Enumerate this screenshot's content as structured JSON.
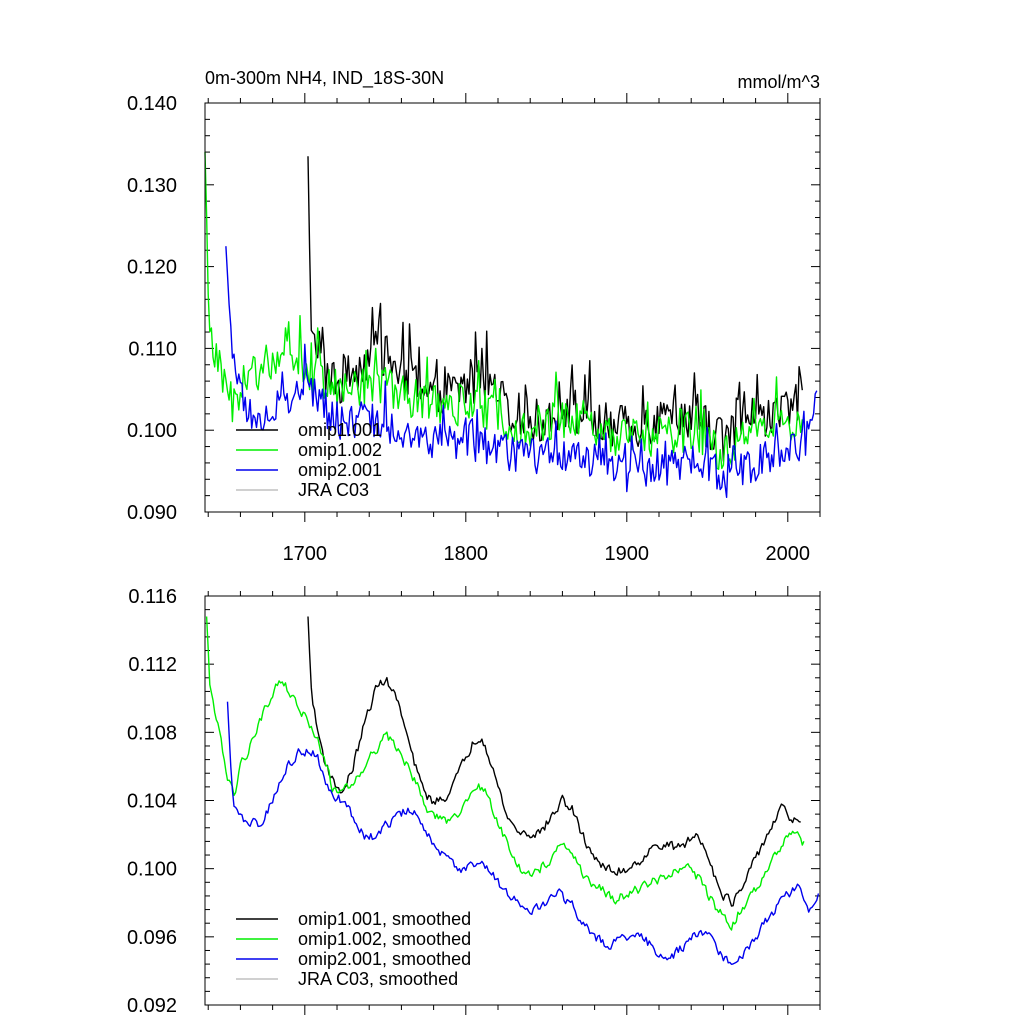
{
  "chart_data": [
    {
      "type": "line",
      "title": "0m-300m NH4, IND_18S-30N",
      "units": "mmol/m^3",
      "xlim": [
        1638,
        2020
      ],
      "ylim": [
        0.09,
        0.14
      ],
      "x_ticks": [
        1700,
        1800,
        1900,
        2000
      ],
      "x_tick_labels": [
        "1700",
        "1800",
        "1900",
        "2000"
      ],
      "y_ticks": [
        0.09,
        0.1,
        0.11,
        0.12,
        0.13,
        0.14
      ],
      "y_tick_labels": [
        "0.090",
        "0.100",
        "0.110",
        "0.120",
        "0.130",
        "0.140"
      ],
      "legend_position": "bottom-left",
      "series": [
        {
          "name": "omip1.001",
          "color": "#000000",
          "anchors": [
            [
              1702,
              0.1335
            ],
            [
              1704,
              0.111
            ],
            [
              1710,
              0.108
            ],
            [
              1720,
              0.105
            ],
            [
              1730,
              0.107
            ],
            [
              1745,
              0.11
            ],
            [
              1760,
              0.107
            ],
            [
              1780,
              0.104
            ],
            [
              1795,
              0.105
            ],
            [
              1810,
              0.106
            ],
            [
              1830,
              0.102
            ],
            [
              1845,
              0.101
            ],
            [
              1860,
              0.103
            ],
            [
              1880,
              0.101
            ],
            [
              1900,
              0.1
            ],
            [
              1920,
              0.101
            ],
            [
              1940,
              0.102
            ],
            [
              1960,
              0.099
            ],
            [
              1980,
              0.101
            ],
            [
              2000,
              0.102
            ],
            [
              2009,
              0.104
            ]
          ],
          "amp": 0.0028,
          "spikes": [
            [
              1747,
              0.1155
            ],
            [
              1765,
              0.113
            ],
            [
              1810,
              0.11
            ],
            [
              1877,
              0.1085
            ],
            [
              1942,
              0.107
            ]
          ]
        },
        {
          "name": "omip1.002",
          "color": "#00ee00",
          "anchors": [
            [
              1638,
              0.134
            ],
            [
              1641,
              0.111
            ],
            [
              1648,
              0.106
            ],
            [
              1655,
              0.103
            ],
            [
              1662,
              0.106
            ],
            [
              1675,
              0.108
            ],
            [
              1690,
              0.11
            ],
            [
              1700,
              0.108
            ],
            [
              1712,
              0.105
            ],
            [
              1725,
              0.105
            ],
            [
              1745,
              0.106
            ],
            [
              1760,
              0.1045
            ],
            [
              1780,
              0.103
            ],
            [
              1800,
              0.103
            ],
            [
              1820,
              0.102
            ],
            [
              1840,
              0.1
            ],
            [
              1860,
              0.1015
            ],
            [
              1880,
              0.1
            ],
            [
              1900,
              0.099
            ],
            [
              1920,
              0.099
            ],
            [
              1940,
              0.1
            ],
            [
              1960,
              0.097
            ],
            [
              1980,
              0.0995
            ],
            [
              2000,
              0.1005
            ],
            [
              2009,
              0.101
            ]
          ],
          "amp": 0.0025,
          "spikes": [
            [
              1697,
              0.114
            ],
            [
              1708,
              0.1125
            ],
            [
              1744,
              0.11
            ],
            [
              1808,
              0.1085
            ],
            [
              1993,
              0.1065
            ]
          ]
        },
        {
          "name": "omip2.001",
          "color": "#0000ee",
          "anchors": [
            [
              1651,
              0.1225
            ],
            [
              1654,
              0.112
            ],
            [
              1660,
              0.104
            ],
            [
              1670,
              0.101
            ],
            [
              1685,
              0.103
            ],
            [
              1700,
              0.105
            ],
            [
              1710,
              0.1035
            ],
            [
              1720,
              0.1005
            ],
            [
              1740,
              0.1015
            ],
            [
              1760,
              0.1
            ],
            [
              1775,
              0.0985
            ],
            [
              1800,
              0.0985
            ],
            [
              1820,
              0.0975
            ],
            [
              1840,
              0.0968
            ],
            [
              1860,
              0.097
            ],
            [
              1880,
              0.0962
            ],
            [
              1900,
              0.0955
            ],
            [
              1920,
              0.095
            ],
            [
              1940,
              0.096
            ],
            [
              1960,
              0.0945
            ],
            [
              1980,
              0.096
            ],
            [
              2000,
              0.0975
            ],
            [
              2010,
              0.0985
            ],
            [
              2018,
              0.1015
            ]
          ],
          "amp": 0.0022,
          "spikes": [
            [
              1700,
              0.1105
            ],
            [
              1750,
              0.106
            ],
            [
              1900,
              0.0925
            ],
            [
              1962,
              0.0918
            ]
          ]
        },
        {
          "name": "JRA C03",
          "color": "#c0c0c0",
          "anchors": []
        }
      ]
    },
    {
      "type": "line",
      "title": "",
      "xlim": [
        1638,
        2020
      ],
      "ylim": [
        0.092,
        0.116
      ],
      "x_ticks": [
        1700,
        1800,
        1900,
        2000
      ],
      "x_tick_labels": [],
      "y_ticks": [
        0.092,
        0.096,
        0.1,
        0.104,
        0.108,
        0.112,
        0.116
      ],
      "y_tick_labels": [
        "0.092",
        "0.096",
        "0.100",
        "0.104",
        "0.108",
        "0.112",
        "0.116"
      ],
      "legend_position": "bottom-left",
      "series": [
        {
          "name": "omip1.001, smoothed",
          "color": "#000000",
          "anchors": [
            [
              1702,
              0.1148
            ],
            [
              1704,
              0.1105
            ],
            [
              1707,
              0.1085
            ],
            [
              1712,
              0.1065
            ],
            [
              1718,
              0.105
            ],
            [
              1724,
              0.1045
            ],
            [
              1730,
              0.106
            ],
            [
              1737,
              0.1085
            ],
            [
              1744,
              0.1105
            ],
            [
              1750,
              0.1112
            ],
            [
              1757,
              0.11
            ],
            [
              1763,
              0.108
            ],
            [
              1767,
              0.1065
            ],
            [
              1772,
              0.105
            ],
            [
              1778,
              0.104
            ],
            [
              1786,
              0.104
            ],
            [
              1795,
              0.1055
            ],
            [
              1805,
              0.1075
            ],
            [
              1810,
              0.1078
            ],
            [
              1815,
              0.1065
            ],
            [
              1820,
              0.1048
            ],
            [
              1826,
              0.103
            ],
            [
              1832,
              0.1022
            ],
            [
              1840,
              0.102
            ],
            [
              1847,
              0.1022
            ],
            [
              1853,
              0.103
            ],
            [
              1860,
              0.104
            ],
            [
              1866,
              0.1035
            ],
            [
              1872,
              0.102
            ],
            [
              1878,
              0.101
            ],
            [
              1886,
              0.1
            ],
            [
              1893,
              0.0998
            ],
            [
              1900,
              0.1
            ],
            [
              1908,
              0.1005
            ],
            [
              1914,
              0.101
            ],
            [
              1922,
              0.1015
            ],
            [
              1930,
              0.1012
            ],
            [
              1937,
              0.1015
            ],
            [
              1943,
              0.102
            ],
            [
              1950,
              0.101
            ],
            [
              1955,
              0.0995
            ],
            [
              1960,
              0.0985
            ],
            [
              1965,
              0.098
            ],
            [
              1970,
              0.0985
            ],
            [
              1975,
              0.0995
            ],
            [
              1982,
              0.101
            ],
            [
              1990,
              0.1025
            ],
            [
              1996,
              0.1035
            ],
            [
              2002,
              0.103
            ],
            [
              2008,
              0.1025
            ]
          ],
          "amp": 0.0004
        },
        {
          "name": "omip1.002, smoothed",
          "color": "#00ee00",
          "anchors": [
            [
              1639,
              0.1148
            ],
            [
              1641,
              0.111
            ],
            [
              1644,
              0.109
            ],
            [
              1648,
              0.1075
            ],
            [
              1652,
              0.1055
            ],
            [
              1656,
              0.1042
            ],
            [
              1660,
              0.106
            ],
            [
              1665,
              0.107
            ],
            [
              1670,
              0.1082
            ],
            [
              1676,
              0.1095
            ],
            [
              1682,
              0.1108
            ],
            [
              1686,
              0.1112
            ],
            [
              1692,
              0.11
            ],
            [
              1699,
              0.109
            ],
            [
              1706,
              0.108
            ],
            [
              1712,
              0.1065
            ],
            [
              1717,
              0.1048
            ],
            [
              1721,
              0.1045
            ],
            [
              1727,
              0.1048
            ],
            [
              1735,
              0.1058
            ],
            [
              1744,
              0.107
            ],
            [
              1750,
              0.1078
            ],
            [
              1757,
              0.1072
            ],
            [
              1764,
              0.106
            ],
            [
              1770,
              0.1048
            ],
            [
              1776,
              0.1035
            ],
            [
              1785,
              0.1028
            ],
            [
              1793,
              0.103
            ],
            [
              1800,
              0.104
            ],
            [
              1808,
              0.105
            ],
            [
              1814,
              0.1042
            ],
            [
              1820,
              0.1028
            ],
            [
              1828,
              0.101
            ],
            [
              1836,
              0.0998
            ],
            [
              1844,
              0.0998
            ],
            [
              1852,
              0.1005
            ],
            [
              1858,
              0.1015
            ],
            [
              1866,
              0.101
            ],
            [
              1872,
              0.0998
            ],
            [
              1880,
              0.099
            ],
            [
              1888,
              0.0985
            ],
            [
              1894,
              0.0982
            ],
            [
              1900,
              0.0985
            ],
            [
              1908,
              0.0988
            ],
            [
              1916,
              0.0992
            ],
            [
              1924,
              0.0995
            ],
            [
              1932,
              0.0998
            ],
            [
              1940,
              0.1
            ],
            [
              1948,
              0.099
            ],
            [
              1954,
              0.0978
            ],
            [
              1960,
              0.0972
            ],
            [
              1965,
              0.0965
            ],
            [
              1970,
              0.0975
            ],
            [
              1976,
              0.0982
            ],
            [
              1984,
              0.0995
            ],
            [
              1992,
              0.1008
            ],
            [
              2000,
              0.102
            ],
            [
              2005,
              0.102
            ],
            [
              2010,
              0.1015
            ]
          ],
          "amp": 0.0004
        },
        {
          "name": "omip2.001, smoothed",
          "color": "#0000ee",
          "anchors": [
            [
              1652,
              0.1098
            ],
            [
              1654,
              0.106
            ],
            [
              1656,
              0.1035
            ],
            [
              1660,
              0.103
            ],
            [
              1665,
              0.1028
            ],
            [
              1672,
              0.1025
            ],
            [
              1680,
              0.104
            ],
            [
              1688,
              0.1058
            ],
            [
              1696,
              0.1068
            ],
            [
              1702,
              0.107
            ],
            [
              1708,
              0.1065
            ],
            [
              1714,
              0.1048
            ],
            [
              1718,
              0.1042
            ],
            [
              1723,
              0.104
            ],
            [
              1730,
              0.103
            ],
            [
              1737,
              0.102
            ],
            [
              1744,
              0.1018
            ],
            [
              1750,
              0.1025
            ],
            [
              1757,
              0.103
            ],
            [
              1764,
              0.1035
            ],
            [
              1770,
              0.103
            ],
            [
              1776,
              0.102
            ],
            [
              1784,
              0.101
            ],
            [
              1792,
              0.1002
            ],
            [
              1800,
              0.1
            ],
            [
              1810,
              0.1005
            ],
            [
              1818,
              0.0995
            ],
            [
              1826,
              0.0985
            ],
            [
              1834,
              0.0978
            ],
            [
              1842,
              0.0975
            ],
            [
              1850,
              0.098
            ],
            [
              1858,
              0.0985
            ],
            [
              1865,
              0.098
            ],
            [
              1872,
              0.097
            ],
            [
              1880,
              0.096
            ],
            [
              1888,
              0.0955
            ],
            [
              1896,
              0.0958
            ],
            [
              1904,
              0.0962
            ],
            [
              1912,
              0.0958
            ],
            [
              1920,
              0.095
            ],
            [
              1928,
              0.0948
            ],
            [
              1936,
              0.0955
            ],
            [
              1944,
              0.0962
            ],
            [
              1952,
              0.096
            ],
            [
              1958,
              0.095
            ],
            [
              1964,
              0.0945
            ],
            [
              1970,
              0.0948
            ],
            [
              1978,
              0.0958
            ],
            [
              1986,
              0.0968
            ],
            [
              1994,
              0.0978
            ],
            [
              2000,
              0.0985
            ],
            [
              2006,
              0.099
            ],
            [
              2010,
              0.098
            ],
            [
              2015,
              0.0975
            ],
            [
              2019,
              0.0985
            ]
          ],
          "amp": 0.0004
        },
        {
          "name": "JRA C03, smoothed",
          "color": "#c0c0c0",
          "anchors": []
        }
      ]
    }
  ]
}
